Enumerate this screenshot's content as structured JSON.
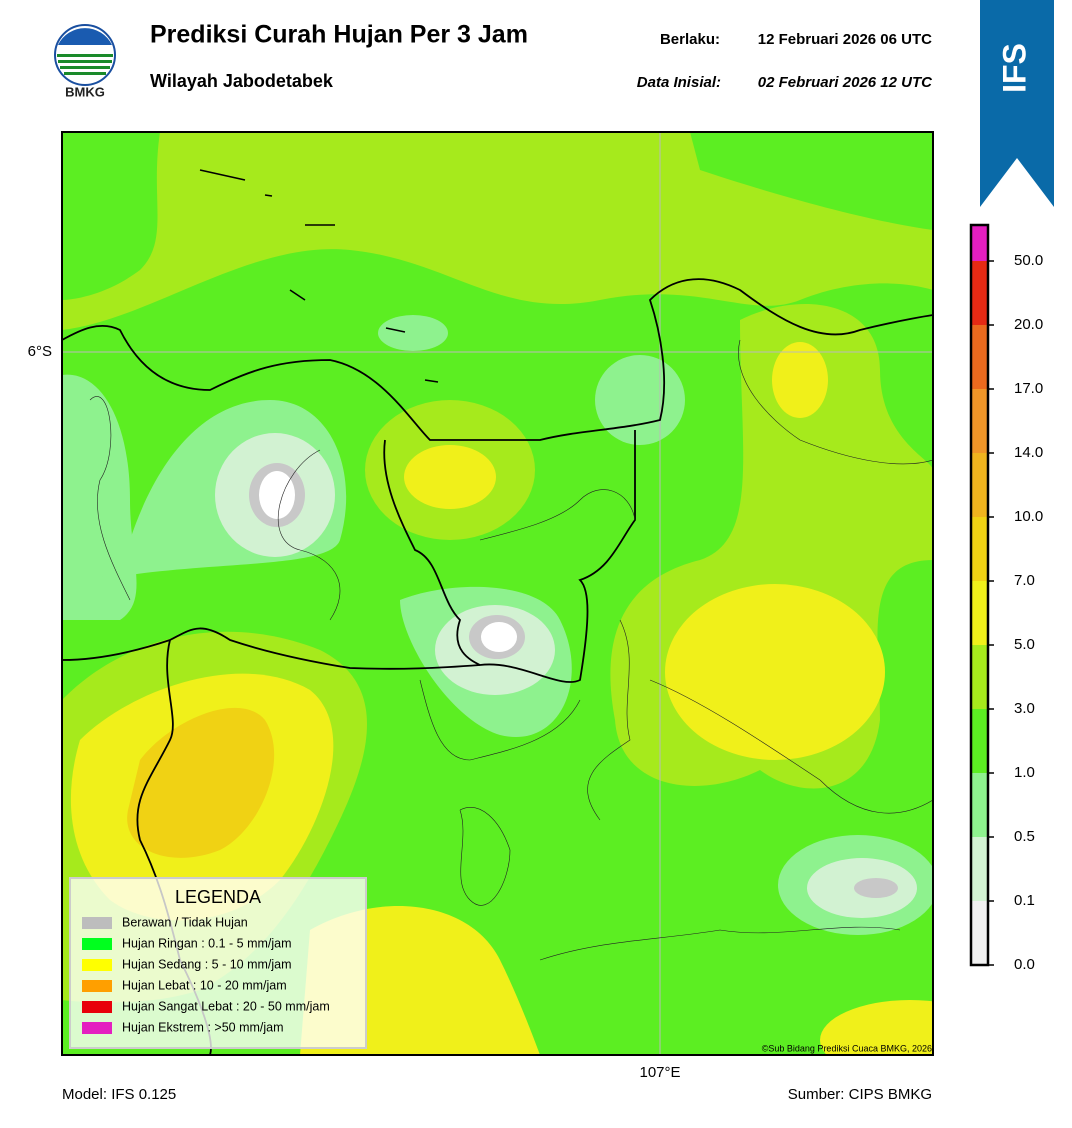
{
  "header": {
    "logo_text": "BMKG",
    "title": "Prediksi Curah Hujan Per 3 Jam",
    "subtitle": "Wilayah Jabodetabek",
    "valid_label": "Berlaku:",
    "valid_value": "12 Februari 2026 06 UTC",
    "init_label": "Data Inisial:",
    "init_value": "02 Februari 2026 12 UTC",
    "badge": "IFS"
  },
  "map": {
    "lat_label": "6°S",
    "lon_label": "107°E",
    "copyright": "©Sub Bidang Prediksi Cuaca BMKG, 2026"
  },
  "legend": {
    "title": "LEGENDA",
    "items": [
      {
        "label": "Berawan / Tidak Hujan",
        "color": "#bdbdbd"
      },
      {
        "label": "Hujan Ringan : 0.1 - 5 mm/jam",
        "color": "#00ff1e"
      },
      {
        "label": "Hujan Sedang : 5 - 10 mm/jam",
        "color": "#ffff00"
      },
      {
        "label": "Hujan Lebat : 10 - 20 mm/jam",
        "color": "#ff9f00"
      },
      {
        "label": "Hujan Sangat Lebat : 20 - 50 mm/jam",
        "color": "#e8000b"
      },
      {
        "label": "Hujan Ekstrem : >50 mm/jam",
        "color": "#e41fc0"
      }
    ]
  },
  "colorbar": {
    "levels": [
      {
        "value": 0,
        "label": "0.0"
      },
      {
        "value": 0.1,
        "label": "0.1"
      },
      {
        "value": 0.5,
        "label": "0.5"
      },
      {
        "value": 1,
        "label": "1.0"
      },
      {
        "value": 3,
        "label": "3.0"
      },
      {
        "value": 5,
        "label": "5.0"
      },
      {
        "value": 7,
        "label": "7.0"
      },
      {
        "value": 10,
        "label": "10.0"
      },
      {
        "value": 14,
        "label": "14.0"
      },
      {
        "value": 17,
        "label": "17.0"
      },
      {
        "value": 20,
        "label": "20.0"
      },
      {
        "value": 50,
        "label": "50.0"
      }
    ],
    "colors": [
      "#f0f0f0",
      "#d2f2d2",
      "#8ef28e",
      "#5cee22",
      "#a6ea1c",
      "#f0f01a",
      "#f0d214",
      "#f0b41e",
      "#f09628",
      "#eb6a1e",
      "#e62a14",
      "#e41fc0"
    ]
  },
  "footer": {
    "model": "Model: IFS 0.125",
    "source": "Sumber: CIPS BMKG"
  }
}
